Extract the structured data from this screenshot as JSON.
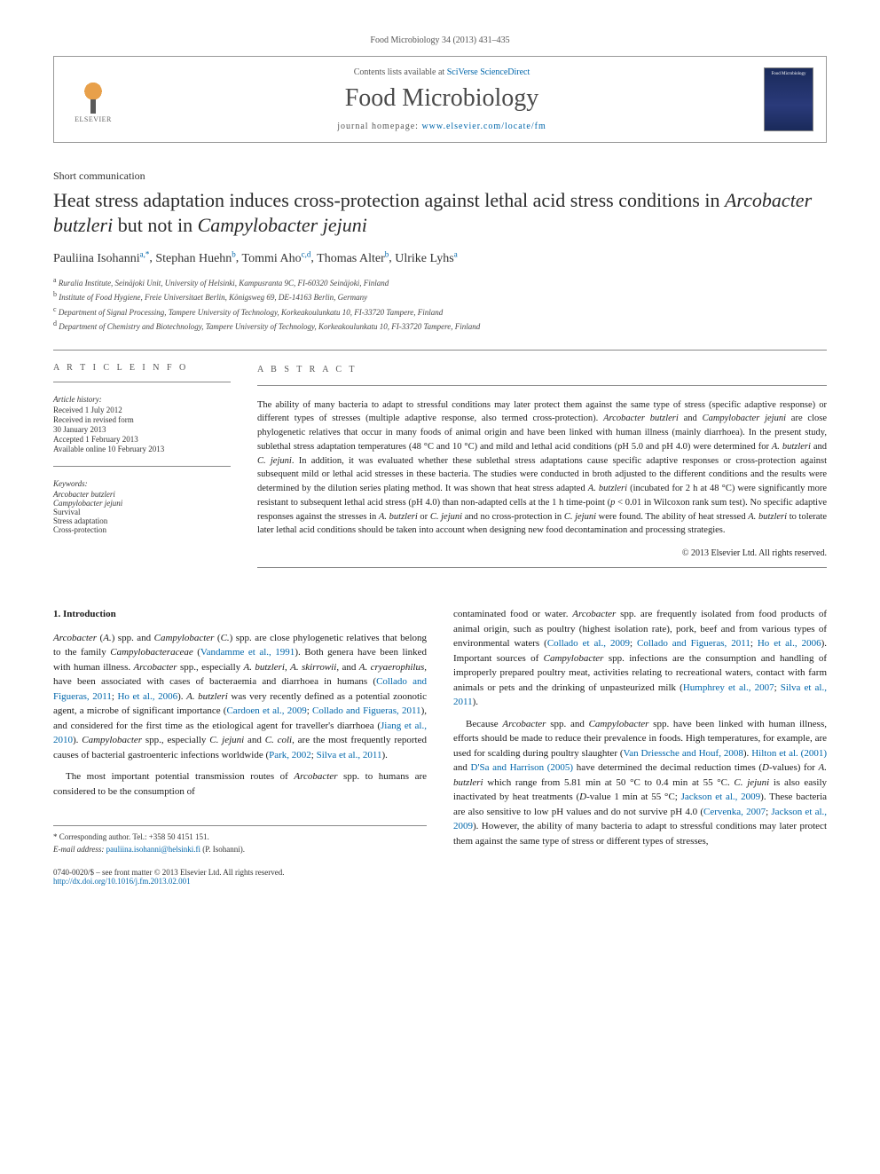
{
  "journal_ref": "Food Microbiology 34 (2013) 431–435",
  "header": {
    "contents_prefix": "Contents lists available at ",
    "contents_link": "SciVerse ScienceDirect",
    "journal_name": "Food Microbiology",
    "homepage_prefix": "journal homepage: ",
    "homepage_url": "www.elsevier.com/locate/fm",
    "elsevier_label": "ELSEVIER",
    "cover_label": "Food Microbiology"
  },
  "article_type": "Short communication",
  "title_parts": {
    "p1": "Heat stress adaptation induces cross-protection against lethal acid stress conditions in ",
    "i1": "Arcobacter butzleri",
    "p2": " but not in ",
    "i2": "Campylobacter jejuni"
  },
  "authors": {
    "a1": {
      "name": "Pauliina Isohanni",
      "sup": "a,*"
    },
    "a2": {
      "name": "Stephan Huehn",
      "sup": "b"
    },
    "a3": {
      "name": "Tommi Aho",
      "sup": "c,d"
    },
    "a4": {
      "name": "Thomas Alter",
      "sup": "b"
    },
    "a5": {
      "name": "Ulrike Lyhs",
      "sup": "a"
    }
  },
  "affiliations": {
    "a": "Ruralia Institute, Seinäjoki Unit, University of Helsinki, Kampusranta 9C, FI-60320 Seinäjoki, Finland",
    "b": "Institute of Food Hygiene, Freie Universitaet Berlin, Königsweg 69, DE-14163 Berlin, Germany",
    "c": "Department of Signal Processing, Tampere University of Technology, Korkeakoulunkatu 10, FI-33720 Tampere, Finland",
    "d": "Department of Chemistry and Biotechnology, Tampere University of Technology, Korkeakoulunkatu 10, FI-33720 Tampere, Finland"
  },
  "info": {
    "heading": "A R T I C L E   I N F O",
    "history_label": "Article history:",
    "received": "Received 1 July 2012",
    "revised1": "Received in revised form",
    "revised2": "30 January 2013",
    "accepted": "Accepted 1 February 2013",
    "online": "Available online 10 February 2013",
    "keywords_label": "Keywords:",
    "k1": "Arcobacter butzleri",
    "k2": "Campylobacter jejuni",
    "k3": "Survival",
    "k4": "Stress adaptation",
    "k5": "Cross-protection"
  },
  "abstract": {
    "heading": "A B S T R A C T",
    "text_parts": [
      {
        "t": "plain",
        "v": "The ability of many bacteria to adapt to stressful conditions may later protect them against the same type of stress (specific adaptive response) or different types of stresses (multiple adaptive response, also termed cross-protection). "
      },
      {
        "t": "italic",
        "v": "Arcobacter butzleri"
      },
      {
        "t": "plain",
        "v": " and "
      },
      {
        "t": "italic",
        "v": "Campylobacter jejuni"
      },
      {
        "t": "plain",
        "v": " are close phylogenetic relatives that occur in many foods of animal origin and have been linked with human illness (mainly diarrhoea). In the present study, sublethal stress adaptation temperatures (48 °C and 10 °C) and mild and lethal acid conditions (pH 5.0 and pH 4.0) were determined for "
      },
      {
        "t": "italic",
        "v": "A. butzleri"
      },
      {
        "t": "plain",
        "v": " and "
      },
      {
        "t": "italic",
        "v": "C. jejuni"
      },
      {
        "t": "plain",
        "v": ". In addition, it was evaluated whether these sublethal stress adaptations cause specific adaptive responses or cross-protection against subsequent mild or lethal acid stresses in these bacteria. The studies were conducted in broth adjusted to the different conditions and the results were determined by the dilution series plating method. It was shown that heat stress adapted "
      },
      {
        "t": "italic",
        "v": "A. butzleri"
      },
      {
        "t": "plain",
        "v": " (incubated for 2 h at 48 °C) were significantly more resistant to subsequent lethal acid stress (pH 4.0) than non-adapted cells at the 1 h time-point ("
      },
      {
        "t": "italic",
        "v": "p"
      },
      {
        "t": "plain",
        "v": " < 0.01 in Wilcoxon rank sum test). No specific adaptive responses against the stresses in "
      },
      {
        "t": "italic",
        "v": "A. butzleri"
      },
      {
        "t": "plain",
        "v": " or "
      },
      {
        "t": "italic",
        "v": "C. jejuni"
      },
      {
        "t": "plain",
        "v": " and no cross-protection in "
      },
      {
        "t": "italic",
        "v": "C. jejuni"
      },
      {
        "t": "plain",
        "v": " were found. The ability of heat stressed "
      },
      {
        "t": "italic",
        "v": "A. butzleri"
      },
      {
        "t": "plain",
        "v": " to tolerate later lethal acid conditions should be taken into account when designing new food decontamination and processing strategies."
      }
    ],
    "copyright": "© 2013 Elsevier Ltd. All rights reserved."
  },
  "section1": {
    "heading": "1.  Introduction",
    "para1": [
      {
        "t": "italic",
        "v": "Arcobacter"
      },
      {
        "t": "plain",
        "v": " ("
      },
      {
        "t": "italic",
        "v": "A."
      },
      {
        "t": "plain",
        "v": ") spp. and "
      },
      {
        "t": "italic",
        "v": "Campylobacter"
      },
      {
        "t": "plain",
        "v": " ("
      },
      {
        "t": "italic",
        "v": "C."
      },
      {
        "t": "plain",
        "v": ") spp. are close phylogenetic relatives that belong to the family "
      },
      {
        "t": "italic",
        "v": "Campylobacteraceae"
      },
      {
        "t": "plain",
        "v": " ("
      },
      {
        "t": "link",
        "v": "Vandamme et al., 1991"
      },
      {
        "t": "plain",
        "v": "). Both genera have been linked with human illness. "
      },
      {
        "t": "italic",
        "v": "Arcobacter"
      },
      {
        "t": "plain",
        "v": " spp., especially "
      },
      {
        "t": "italic",
        "v": "A. butzleri"
      },
      {
        "t": "plain",
        "v": ", "
      },
      {
        "t": "italic",
        "v": "A. skirrowii"
      },
      {
        "t": "plain",
        "v": ", and "
      },
      {
        "t": "italic",
        "v": "A. cryaerophilus"
      },
      {
        "t": "plain",
        "v": ", have been associated with cases of bacteraemia and diarrhoea in humans ("
      },
      {
        "t": "link",
        "v": "Collado and Figueras, 2011"
      },
      {
        "t": "plain",
        "v": "; "
      },
      {
        "t": "link",
        "v": "Ho et al., 2006"
      },
      {
        "t": "plain",
        "v": "). "
      },
      {
        "t": "italic",
        "v": "A. butzleri"
      },
      {
        "t": "plain",
        "v": " was very recently defined as a potential zoonotic agent, a microbe of significant importance ("
      },
      {
        "t": "link",
        "v": "Cardoen et al., 2009"
      },
      {
        "t": "plain",
        "v": "; "
      },
      {
        "t": "link",
        "v": "Collado and Figueras, 2011"
      },
      {
        "t": "plain",
        "v": "), and considered for the first time as the etiological agent for traveller's diarrhoea ("
      },
      {
        "t": "link",
        "v": "Jiang et al., 2010"
      },
      {
        "t": "plain",
        "v": "). "
      },
      {
        "t": "italic",
        "v": "Campylobacter"
      },
      {
        "t": "plain",
        "v": " spp., especially "
      },
      {
        "t": "italic",
        "v": "C. jejuni"
      },
      {
        "t": "plain",
        "v": " and "
      },
      {
        "t": "italic",
        "v": "C. coli"
      },
      {
        "t": "plain",
        "v": ", are the most frequently reported causes of bacterial gastroenteric infections worldwide ("
      },
      {
        "t": "link",
        "v": "Park, 2002"
      },
      {
        "t": "plain",
        "v": "; "
      },
      {
        "t": "link",
        "v": "Silva et al., 2011"
      },
      {
        "t": "plain",
        "v": ")."
      }
    ],
    "para2": [
      {
        "t": "plain",
        "v": "The most important potential transmission routes of "
      },
      {
        "t": "italic",
        "v": "Arcobacter"
      },
      {
        "t": "plain",
        "v": " spp. to humans are considered to be the consumption of "
      }
    ],
    "para2b": [
      {
        "t": "plain",
        "v": "contaminated food or water. "
      },
      {
        "t": "italic",
        "v": "Arcobacter"
      },
      {
        "t": "plain",
        "v": " spp. are frequently isolated from food products of animal origin, such as poultry (highest isolation rate), pork, beef and from various types of environmental waters ("
      },
      {
        "t": "link",
        "v": "Collado et al., 2009"
      },
      {
        "t": "plain",
        "v": "; "
      },
      {
        "t": "link",
        "v": "Collado and Figueras, 2011"
      },
      {
        "t": "plain",
        "v": "; "
      },
      {
        "t": "link",
        "v": "Ho et al., 2006"
      },
      {
        "t": "plain",
        "v": "). Important sources of "
      },
      {
        "t": "italic",
        "v": "Campylobacter"
      },
      {
        "t": "plain",
        "v": " spp. infections are the consumption and handling of improperly prepared poultry meat, activities relating to recreational waters, contact with farm animals or pets and the drinking of unpasteurized milk ("
      },
      {
        "t": "link",
        "v": "Humphrey et al., 2007"
      },
      {
        "t": "plain",
        "v": "; "
      },
      {
        "t": "link",
        "v": "Silva et al., 2011"
      },
      {
        "t": "plain",
        "v": ")."
      }
    ],
    "para3": [
      {
        "t": "plain",
        "v": "Because "
      },
      {
        "t": "italic",
        "v": "Arcobacter"
      },
      {
        "t": "plain",
        "v": " spp. and "
      },
      {
        "t": "italic",
        "v": "Campylobacter"
      },
      {
        "t": "plain",
        "v": " spp. have been linked with human illness, efforts should be made to reduce their prevalence in foods. High temperatures, for example, are used for scalding during poultry slaughter ("
      },
      {
        "t": "link",
        "v": "Van Driessche and Houf, 2008"
      },
      {
        "t": "plain",
        "v": "). "
      },
      {
        "t": "link",
        "v": "Hilton et al. (2001)"
      },
      {
        "t": "plain",
        "v": " and "
      },
      {
        "t": "link",
        "v": "D'Sa and Harrison (2005)"
      },
      {
        "t": "plain",
        "v": " have determined the decimal reduction times ("
      },
      {
        "t": "italic",
        "v": "D"
      },
      {
        "t": "plain",
        "v": "-values) for "
      },
      {
        "t": "italic",
        "v": "A. butzleri"
      },
      {
        "t": "plain",
        "v": " which range from 5.81 min at 50 °C to 0.4 min at 55 °C. "
      },
      {
        "t": "italic",
        "v": "C. jejuni"
      },
      {
        "t": "plain",
        "v": " is also easily inactivated by heat treatments ("
      },
      {
        "t": "italic",
        "v": "D"
      },
      {
        "t": "plain",
        "v": "-value 1 min at 55 °C; "
      },
      {
        "t": "link",
        "v": "Jackson et al., 2009"
      },
      {
        "t": "plain",
        "v": "). These bacteria are also sensitive to low pH values and do not survive pH 4.0 ("
      },
      {
        "t": "link",
        "v": "Cervenka, 2007"
      },
      {
        "t": "plain",
        "v": "; "
      },
      {
        "t": "link",
        "v": "Jackson et al., 2009"
      },
      {
        "t": "plain",
        "v": "). However, the ability of many bacteria to adapt to stressful conditions may later protect them against the same type of stress or different types of stresses,"
      }
    ]
  },
  "footnotes": {
    "corresponding": "* Corresponding author. Tel.: +358 50 4151 151.",
    "email_label": "E-mail address: ",
    "email": "pauliina.isohanni@helsinki.fi",
    "email_suffix": " (P. Isohanni)."
  },
  "bottom": {
    "issn": "0740-0020/$ – see front matter © 2013 Elsevier Ltd. All rights reserved.",
    "doi_url": "http://dx.doi.org/10.1016/j.fm.2013.02.001"
  },
  "colors": {
    "link": "#0066aa",
    "text": "#1a1a1a",
    "rule": "#888888",
    "bg": "#ffffff"
  }
}
